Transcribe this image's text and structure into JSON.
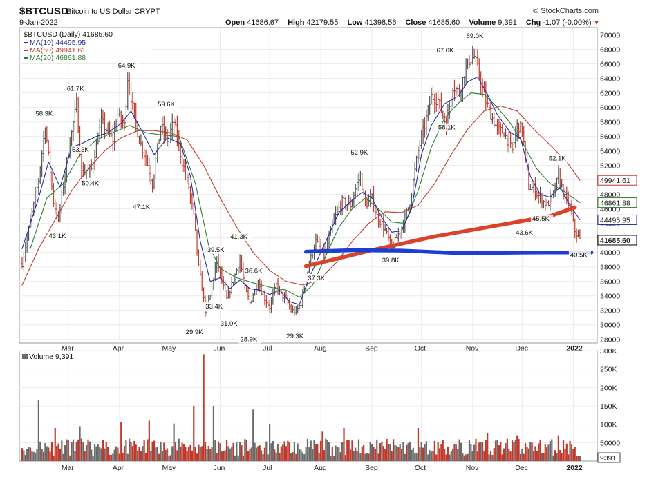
{
  "header": {
    "symbol": "$BTCUSD",
    "description": "Bitcoin to US Dollar  CRYPT",
    "brand": "© StockCharts.com",
    "date": "9-Jan-2022",
    "open_label": "Open",
    "open": "41686.67",
    "high_label": "High",
    "high": "42179.55",
    "low_label": "Low",
    "low": "41398.56",
    "close_label": "Close",
    "close": "41685.60",
    "volume_label": "Volume",
    "volume": "9,391",
    "chg_label": "Chg",
    "chg": "-1.07 (-0.00%)"
  },
  "colors": {
    "up": "#555555",
    "down": "#c0392b",
    "ma10": "#1f2f9f",
    "ma50": "#c0392b",
    "ma20": "#2e7d32",
    "annot_red": "#d9432a",
    "annot_blue": "#1c3fd1"
  },
  "chart_data": [
    {
      "type": "candlestick",
      "title": "$BTCUSD (Daily) 41685.60",
      "legend": [
        {
          "name": "MA(10) 44495.95",
          "color": "#1f2f9f"
        },
        {
          "name": "MA(50) 49941.61",
          "color": "#c0392b"
        },
        {
          "name": "MA(20) 46861.88",
          "color": "#2e7d32"
        }
      ],
      "legend_position": "top-left",
      "ylim": [
        27500,
        71000
      ],
      "y_ticks": [
        28000,
        30000,
        32000,
        34000,
        36000,
        38000,
        40000,
        42000,
        44000,
        46000,
        48000,
        50000,
        52000,
        54000,
        56000,
        58000,
        60000,
        62000,
        64000,
        66000,
        68000,
        70000
      ],
      "x_range": [
        "2022-02-01",
        "2022-01-14"
      ],
      "x_ticks": [
        {
          "label": "Mar",
          "day": 28
        },
        {
          "label": "Apr",
          "day": 59
        },
        {
          "label": "May",
          "day": 89
        },
        {
          "label": "Jun",
          "day": 120
        },
        {
          "label": "Jul",
          "day": 150
        },
        {
          "label": "Aug",
          "day": 181
        },
        {
          "label": "Sep",
          "day": 212
        },
        {
          "label": "Oct",
          "day": 242
        },
        {
          "label": "Nov",
          "day": 273
        },
        {
          "label": "Dec",
          "day": 303
        },
        {
          "label": "2022",
          "day": 334
        }
      ],
      "price_path": [
        [
          0,
          38500
        ],
        [
          10,
          50000
        ],
        [
          14,
          57500
        ],
        [
          19,
          47000
        ],
        [
          22,
          44500
        ],
        [
          27,
          52500
        ],
        [
          33,
          60500
        ],
        [
          36,
          51000
        ],
        [
          42,
          51500
        ],
        [
          48,
          58000
        ],
        [
          55,
          55500
        ],
        [
          58,
          59000
        ],
        [
          62,
          57500
        ],
        [
          64,
          64200
        ],
        [
          67,
          60000
        ],
        [
          71,
          55500
        ],
        [
          75,
          53000
        ],
        [
          79,
          49500
        ],
        [
          84,
          57500
        ],
        [
          88,
          55500
        ],
        [
          92,
          58000
        ],
        [
          97,
          52500
        ],
        [
          101,
          49000
        ],
        [
          104,
          45000
        ],
        [
          107,
          38000
        ],
        [
          111,
          32000
        ],
        [
          114,
          34000
        ],
        [
          118,
          39000
        ],
        [
          121,
          36000
        ],
        [
          124,
          33500
        ],
        [
          127,
          35500
        ],
        [
          132,
          39000
        ],
        [
          135,
          35000
        ],
        [
          138,
          33000
        ],
        [
          143,
          36000
        ],
        [
          146,
          34000
        ],
        [
          150,
          32500
        ],
        [
          154,
          35500
        ],
        [
          157,
          34200
        ],
        [
          160,
          33500
        ],
        [
          163,
          32000
        ],
        [
          166,
          31800
        ],
        [
          169,
          33000
        ],
        [
          174,
          38500
        ],
        [
          178,
          41500
        ],
        [
          183,
          39500
        ],
        [
          189,
          44500
        ],
        [
          194,
          47000
        ],
        [
          199,
          46500
        ],
        [
          203,
          49500
        ],
        [
          205,
          50500
        ],
        [
          208,
          46500
        ],
        [
          212,
          47500
        ],
        [
          215,
          45000
        ],
        [
          218,
          44000
        ],
        [
          221,
          42500
        ],
        [
          224,
          40500
        ],
        [
          228,
          42500
        ],
        [
          231,
          44000
        ],
        [
          235,
          47000
        ],
        [
          240,
          54000
        ],
        [
          244,
          57500
        ],
        [
          248,
          61500
        ],
        [
          252,
          61000
        ],
        [
          257,
          57500
        ],
        [
          261,
          63000
        ],
        [
          265,
          62000
        ],
        [
          268,
          64800
        ],
        [
          271,
          66500
        ],
        [
          274,
          67000
        ],
        [
          277,
          64500
        ],
        [
          280,
          61500
        ],
        [
          284,
          59000
        ],
        [
          288,
          57000
        ],
        [
          292,
          56500
        ],
        [
          297,
          54000
        ],
        [
          300,
          57500
        ],
        [
          303,
          57000
        ],
        [
          307,
          49000
        ],
        [
          310,
          48800
        ],
        [
          314,
          47500
        ],
        [
          318,
          46500
        ],
        [
          322,
          48000
        ],
        [
          325,
          50500
        ],
        [
          329,
          47500
        ],
        [
          332,
          46300
        ],
        [
          335,
          43000
        ],
        [
          338,
          41685
        ]
      ],
      "ma10_path": [
        [
          0,
          40500
        ],
        [
          10,
          47500
        ],
        [
          16,
          52500
        ],
        [
          23,
          49000
        ],
        [
          30,
          54500
        ],
        [
          36,
          55000
        ],
        [
          45,
          56000
        ],
        [
          52,
          56500
        ],
        [
          60,
          57800
        ],
        [
          66,
          59500
        ],
        [
          72,
          57000
        ],
        [
          80,
          53500
        ],
        [
          88,
          55800
        ],
        [
          96,
          55000
        ],
        [
          102,
          50500
        ],
        [
          108,
          41500
        ],
        [
          114,
          36000
        ],
        [
          120,
          36500
        ],
        [
          126,
          35000
        ],
        [
          132,
          36200
        ],
        [
          138,
          35000
        ],
        [
          144,
          34800
        ],
        [
          150,
          34200
        ],
        [
          156,
          34800
        ],
        [
          162,
          33200
        ],
        [
          168,
          32800
        ],
        [
          174,
          36500
        ],
        [
          180,
          39500
        ],
        [
          186,
          42500
        ],
        [
          192,
          45500
        ],
        [
          200,
          47200
        ],
        [
          206,
          48300
        ],
        [
          212,
          47500
        ],
        [
          218,
          44800
        ],
        [
          224,
          42800
        ],
        [
          230,
          43000
        ],
        [
          236,
          46000
        ],
        [
          242,
          53500
        ],
        [
          248,
          57500
        ],
        [
          256,
          60500
        ],
        [
          264,
          61500
        ],
        [
          270,
          63500
        ],
        [
          276,
          64200
        ],
        [
          282,
          61800
        ],
        [
          288,
          59000
        ],
        [
          296,
          56500
        ],
        [
          302,
          55800
        ],
        [
          308,
          50500
        ],
        [
          314,
          48000
        ],
        [
          320,
          47600
        ],
        [
          326,
          49000
        ],
        [
          332,
          46500
        ],
        [
          338,
          44496
        ]
      ],
      "ma20_path": [
        [
          5,
          40500
        ],
        [
          15,
          47500
        ],
        [
          25,
          49500
        ],
        [
          35,
          53500
        ],
        [
          45,
          55500
        ],
        [
          55,
          56500
        ],
        [
          65,
          57500
        ],
        [
          75,
          56500
        ],
        [
          85,
          56200
        ],
        [
          95,
          56000
        ],
        [
          105,
          49500
        ],
        [
          113,
          41000
        ],
        [
          120,
          37800
        ],
        [
          130,
          36500
        ],
        [
          140,
          35800
        ],
        [
          150,
          35200
        ],
        [
          160,
          34800
        ],
        [
          168,
          33800
        ],
        [
          176,
          35500
        ],
        [
          184,
          39500
        ],
        [
          192,
          43500
        ],
        [
          200,
          46000
        ],
        [
          208,
          47500
        ],
        [
          216,
          46000
        ],
        [
          224,
          44200
        ],
        [
          232,
          44000
        ],
        [
          240,
          48500
        ],
        [
          248,
          54500
        ],
        [
          256,
          58500
        ],
        [
          264,
          60500
        ],
        [
          272,
          62000
        ],
        [
          280,
          61800
        ],
        [
          288,
          60000
        ],
        [
          296,
          57800
        ],
        [
          304,
          54800
        ],
        [
          312,
          51500
        ],
        [
          320,
          49500
        ],
        [
          328,
          48500
        ],
        [
          338,
          46862
        ]
      ],
      "ma50_path": [
        [
          0,
          35500
        ],
        [
          10,
          40500
        ],
        [
          20,
          44500
        ],
        [
          30,
          48500
        ],
        [
          40,
          51500
        ],
        [
          50,
          54000
        ],
        [
          60,
          55800
        ],
        [
          70,
          56800
        ],
        [
          80,
          56800
        ],
        [
          90,
          56500
        ],
        [
          100,
          55500
        ],
        [
          110,
          52000
        ],
        [
          120,
          47500
        ],
        [
          130,
          43500
        ],
        [
          140,
          40000
        ],
        [
          150,
          37500
        ],
        [
          160,
          36000
        ],
        [
          170,
          35500
        ],
        [
          180,
          36200
        ],
        [
          190,
          38500
        ],
        [
          200,
          41500
        ],
        [
          210,
          44000
        ],
        [
          220,
          45600
        ],
        [
          230,
          45500
        ],
        [
          240,
          46500
        ],
        [
          250,
          49500
        ],
        [
          260,
          53500
        ],
        [
          270,
          57000
        ],
        [
          280,
          59500
        ],
        [
          290,
          60200
        ],
        [
          300,
          59500
        ],
        [
          310,
          57000
        ],
        [
          320,
          54800
        ],
        [
          330,
          52500
        ],
        [
          338,
          49942
        ]
      ],
      "annotations": [
        {
          "text": "58.3K",
          "day": 14,
          "value": 58300
        },
        {
          "text": "43.1K",
          "day": 22,
          "value": 43100
        },
        {
          "text": "61.7K",
          "day": 33,
          "value": 61700
        },
        {
          "text": "53.3K",
          "day": 36,
          "value": 53300
        },
        {
          "text": "50.4K",
          "day": 42,
          "value": 50400
        },
        {
          "text": "64.9K",
          "day": 64,
          "value": 64900
        },
        {
          "text": "47.1K",
          "day": 73,
          "value": 47100
        },
        {
          "text": "59.6K",
          "day": 88,
          "value": 59600
        },
        {
          "text": "29.9K",
          "day": 105,
          "value": 29900
        },
        {
          "text": "39.5K",
          "day": 118,
          "value": 39500
        },
        {
          "text": "33.4K",
          "day": 117,
          "value": 33400
        },
        {
          "text": "41.3K",
          "day": 132,
          "value": 41300
        },
        {
          "text": "31.0K",
          "day": 126,
          "value": 31000
        },
        {
          "text": "36.6K",
          "day": 141,
          "value": 36600
        },
        {
          "text": "28.9K",
          "day": 138,
          "value": 28900
        },
        {
          "text": "29.3K",
          "day": 166,
          "value": 29300
        },
        {
          "text": "37.3K",
          "day": 179,
          "value": 37300
        },
        {
          "text": "52.9K",
          "day": 205,
          "value": 52900
        },
        {
          "text": "39.8K",
          "day": 224,
          "value": 39800
        },
        {
          "text": "67.0K",
          "day": 257,
          "value": 67000
        },
        {
          "text": "58.1K",
          "day": 258,
          "value": 58100
        },
        {
          "text": "69.0K",
          "day": 275,
          "value": 69000
        },
        {
          "text": "43.6K",
          "day": 305,
          "value": 43600
        },
        {
          "text": "45.5K",
          "day": 315,
          "value": 45500
        },
        {
          "text": "52.1K",
          "day": 325,
          "value": 52100
        },
        {
          "text": "40.5K",
          "day": 338,
          "value": 40500
        }
      ],
      "right_tags": [
        {
          "text": "49941.61",
          "value": 49941.61,
          "color": "#c0392b"
        },
        {
          "text": "46861.88",
          "value": 46861.88,
          "color": "#2e7d32"
        },
        {
          "text": "44495.95",
          "value": 44495.95,
          "color": "#1f2f9f"
        },
        {
          "text": "41685.60",
          "value": 41685.6,
          "color": "#000000"
        }
      ],
      "drawn_lines": [
        {
          "name": "red-trendline",
          "color": "#d9432a",
          "points": [
            [
              172,
              38100
            ],
            [
              210,
              40200
            ],
            [
              250,
              42200
            ],
            [
              290,
              43800
            ],
            [
              320,
              45000
            ],
            [
              335,
              46200
            ]
          ]
        },
        {
          "name": "blue-trendline",
          "color": "#1c3fd1",
          "points": [
            [
              172,
              40100
            ],
            [
              200,
              40300
            ],
            [
              230,
              40250
            ],
            [
              260,
              39950
            ],
            [
              290,
              39950
            ],
            [
              320,
              40000
            ],
            [
              345,
              40000
            ]
          ]
        }
      ]
    },
    {
      "type": "bar",
      "title": "Volume 9,391",
      "ylim": [
        0,
        300000
      ],
      "y_ticks": [
        {
          "label": "50000",
          "value": 50000
        },
        {
          "label": "100K",
          "value": 100000
        },
        {
          "label": "150K",
          "value": 150000
        },
        {
          "label": "200K",
          "value": 200000
        },
        {
          "label": "250K",
          "value": 250000
        },
        {
          "label": "300K",
          "value": 300000
        }
      ],
      "last_value_tag": {
        "text": "9391",
        "value": 9391
      },
      "spikes": [
        [
          10,
          165000
        ],
        [
          20,
          90000
        ],
        [
          35,
          95000
        ],
        [
          60,
          105000
        ],
        [
          77,
          110000
        ],
        [
          92,
          102000
        ],
        [
          104,
          150000
        ],
        [
          110,
          290000
        ],
        [
          116,
          150000
        ],
        [
          140,
          140000
        ],
        [
          150,
          100000
        ],
        [
          182,
          80000
        ],
        [
          195,
          90000
        ],
        [
          240,
          90000
        ],
        [
          282,
          75000
        ],
        [
          300,
          70000
        ],
        [
          325,
          70000
        ]
      ],
      "baseline": 42000
    }
  ]
}
